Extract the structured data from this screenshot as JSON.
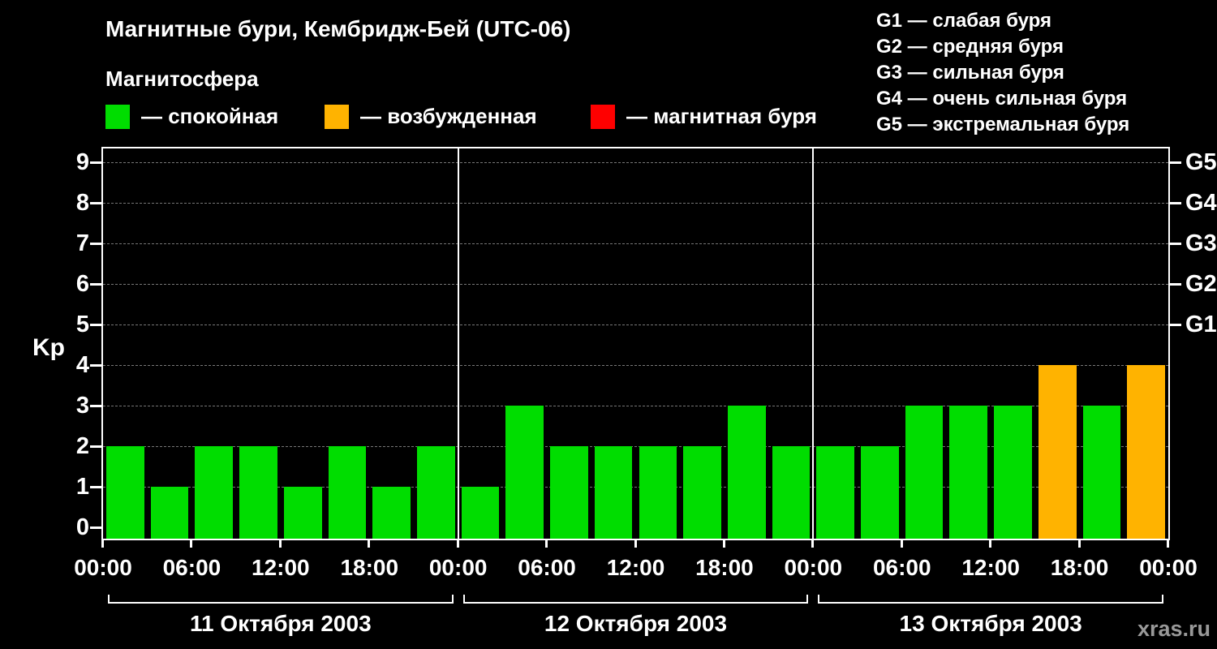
{
  "header": {
    "title": "Магнитные бури, Кембридж-Бей (UTC-06)",
    "subtitle": "Магнитосфера",
    "watermark": "xras.ru"
  },
  "legend": {
    "items": [
      {
        "key": "quiet",
        "label": "— спокойная",
        "color": "#00dd00"
      },
      {
        "key": "excited",
        "label": "— возбужденная",
        "color": "#ffb300"
      },
      {
        "key": "storm",
        "label": "— магнитная буря",
        "color": "#ff0000"
      }
    ]
  },
  "g_scale": {
    "items": [
      {
        "label": "G1 — слабая буря"
      },
      {
        "label": "G2 — средняя буря"
      },
      {
        "label": "G3 — сильная буря"
      },
      {
        "label": "G4 — очень сильная буря"
      },
      {
        "label": "G5 — экстремальная буря"
      }
    ]
  },
  "chart_data": {
    "type": "bar",
    "title": "Магнитные бури, Кембридж-Бей (UTC-06)",
    "ylabel": "Kp",
    "ylim": [
      0,
      9.6
    ],
    "y_ticks": [
      0,
      1,
      2,
      3,
      4,
      5,
      6,
      7,
      8,
      9
    ],
    "right_axis_ticks": [
      {
        "label": "G1",
        "kp": 5
      },
      {
        "label": "G2",
        "kp": 6
      },
      {
        "label": "G3",
        "kp": 7
      },
      {
        "label": "G4",
        "kp": 8
      },
      {
        "label": "G5",
        "kp": 9
      }
    ],
    "time_ticks": [
      "00:00",
      "06:00",
      "12:00",
      "18:00"
    ],
    "end_time_tick": "00:00",
    "bar_interval_hours": 3,
    "grid": "dashed-horizontal",
    "legend_position": "top",
    "days": [
      {
        "date": "11 Октября 2003",
        "values": [
          2,
          1,
          2,
          2,
          1,
          2,
          1,
          2
        ]
      },
      {
        "date": "12 Октября 2003",
        "values": [
          1,
          3,
          2,
          2,
          2,
          2,
          3,
          2
        ]
      },
      {
        "date": "13 Октября 2003",
        "values": [
          2,
          2,
          3,
          3,
          3,
          4,
          3,
          4
        ]
      }
    ],
    "color_rules": {
      "quiet_max": 3,
      "excited_max": 4,
      "colors": {
        "quiet": "#00dd00",
        "excited": "#ffb300",
        "storm": "#ff0000"
      }
    }
  }
}
